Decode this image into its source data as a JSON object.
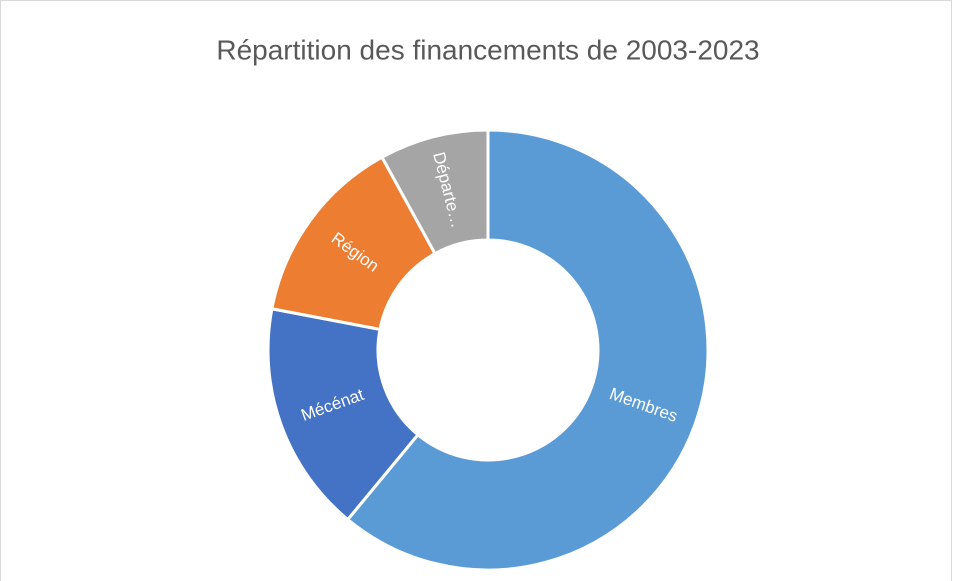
{
  "chart_data": {
    "type": "donut",
    "title": "Répartition des financements de 2003-2023",
    "categories": [
      "Membres",
      "Mécénat",
      "Région",
      "Départe…"
    ],
    "values": [
      61,
      17,
      14,
      8
    ],
    "colors": [
      "#5b9bd5",
      "#4472c4",
      "#ed7d31",
      "#a5a5a5"
    ]
  }
}
